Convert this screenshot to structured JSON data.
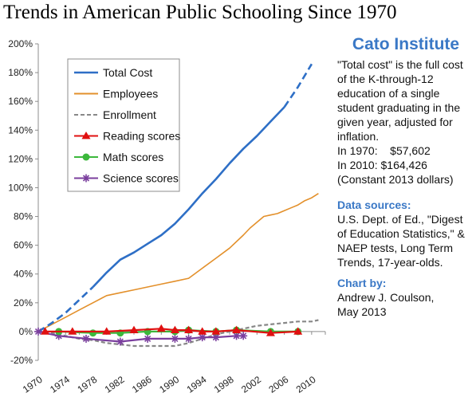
{
  "title": "Trends in American Public Schooling Since 1970",
  "sidebar": {
    "org": "Cato Institute",
    "description": "\"Total cost\" is the full cost of the K-through-12 education of a single student graduating in the given year, adjusted for inflation.",
    "cost1970_label": "In 1970:",
    "cost1970_value": "$57,602",
    "cost2010_label": "In 2010:",
    "cost2010_value": "$164,426",
    "dollars_note": "(Constant 2013 dollars)",
    "sources_header": "Data sources:",
    "sources_text": "U.S. Dept. of Ed., \"Digest of Education Statistics,\" & NAEP tests, Long Term Trends, 17-year-olds.",
    "chartby_header": "Chart by:",
    "chartby_name": "Andrew J. Coulson,",
    "chartby_date": "May 2013"
  },
  "chart_data": {
    "type": "line",
    "ylim": [
      -20,
      200
    ],
    "xlim": [
      1970,
      2012
    ],
    "y_ticks": [
      "-20%",
      "0%",
      "20%",
      "40%",
      "60%",
      "80%",
      "100%",
      "120%",
      "140%",
      "160%",
      "180%",
      "200%"
    ],
    "y_tick_values": [
      -20,
      0,
      20,
      40,
      60,
      80,
      100,
      120,
      140,
      160,
      180,
      200
    ],
    "x_ticks": [
      "1970",
      "1974",
      "1978",
      "1982",
      "1986",
      "1990",
      "1994",
      "1998",
      "2002",
      "2006",
      "2010"
    ],
    "x_tick_values": [
      1970,
      1974,
      1978,
      1982,
      1986,
      1990,
      1994,
      1998,
      2002,
      2006,
      2010
    ],
    "grid": false,
    "legend": "top-left",
    "colors": {
      "total_cost": "#2e6fc6",
      "employees": "#e3902b",
      "enrollment": "#888888",
      "reading": "#e01010",
      "math": "#3cb83c",
      "science": "#7b3f9e"
    },
    "series": [
      {
        "name": "Total Cost",
        "key": "total_cost",
        "style": "solid",
        "points": [
          [
            1970,
            0
          ],
          [
            1972,
            6
          ],
          [
            1974,
            13
          ],
          [
            1976,
            22
          ],
          [
            1978,
            31
          ],
          [
            1980,
            41
          ],
          [
            1982,
            50
          ],
          [
            1984,
            55
          ],
          [
            1986,
            61
          ],
          [
            1988,
            67
          ],
          [
            1990,
            75
          ],
          [
            1992,
            85
          ],
          [
            1994,
            96
          ],
          [
            1996,
            106
          ],
          [
            1998,
            117
          ],
          [
            2000,
            127
          ],
          [
            2002,
            136
          ],
          [
            2004,
            146
          ],
          [
            2006,
            156
          ],
          [
            2008,
            170
          ],
          [
            2010,
            186
          ]
        ],
        "dashed_ranges": [
          [
            1970,
            1978
          ],
          [
            2006,
            2010
          ]
        ]
      },
      {
        "name": "Employees",
        "key": "employees",
        "style": "solid",
        "points": [
          [
            1970,
            0
          ],
          [
            1972,
            5
          ],
          [
            1974,
            10
          ],
          [
            1976,
            15
          ],
          [
            1978,
            20
          ],
          [
            1980,
            25
          ],
          [
            1982,
            27
          ],
          [
            1984,
            29
          ],
          [
            1986,
            31
          ],
          [
            1988,
            33
          ],
          [
            1990,
            35
          ],
          [
            1992,
            37
          ],
          [
            1994,
            44
          ],
          [
            1996,
            51
          ],
          [
            1998,
            58
          ],
          [
            2000,
            67
          ],
          [
            2001,
            72
          ],
          [
            2002,
            76
          ],
          [
            2003,
            80
          ],
          [
            2004,
            81
          ],
          [
            2005,
            82
          ],
          [
            2006,
            84
          ],
          [
            2007,
            86
          ],
          [
            2008,
            88
          ],
          [
            2009,
            91
          ],
          [
            2010,
            93
          ],
          [
            2011,
            96
          ]
        ]
      },
      {
        "name": "Enrollment",
        "key": "enrollment",
        "style": "dashed",
        "points": [
          [
            1970,
            0
          ],
          [
            1972,
            -1
          ],
          [
            1974,
            -3
          ],
          [
            1976,
            -5
          ],
          [
            1978,
            -6
          ],
          [
            1980,
            -8
          ],
          [
            1982,
            -9
          ],
          [
            1984,
            -10
          ],
          [
            1986,
            -10
          ],
          [
            1988,
            -10
          ],
          [
            1990,
            -10
          ],
          [
            1992,
            -8
          ],
          [
            1994,
            -5
          ],
          [
            1996,
            -2
          ],
          [
            1998,
            0
          ],
          [
            2000,
            2
          ],
          [
            2002,
            4
          ],
          [
            2004,
            5
          ],
          [
            2006,
            6
          ],
          [
            2008,
            7
          ],
          [
            2010,
            7
          ],
          [
            2011,
            8
          ]
        ]
      },
      {
        "name": "Reading scores",
        "key": "reading",
        "style": "solid",
        "marker": "triangle",
        "points": [
          [
            1971,
            0
          ],
          [
            1975,
            0
          ],
          [
            1980,
            0
          ],
          [
            1984,
            1
          ],
          [
            1988,
            2
          ],
          [
            1990,
            1
          ],
          [
            1992,
            1
          ],
          [
            1994,
            0
          ],
          [
            1996,
            0
          ],
          [
            1999,
            1
          ],
          [
            2004,
            -1
          ],
          [
            2008,
            0
          ]
        ]
      },
      {
        "name": "Math scores",
        "key": "math",
        "style": "solid",
        "marker": "circle",
        "points": [
          [
            1973,
            0
          ],
          [
            1978,
            -1
          ],
          [
            1982,
            -1
          ],
          [
            1986,
            0
          ],
          [
            1990,
            0
          ],
          [
            1992,
            1
          ],
          [
            1996,
            0
          ],
          [
            1999,
            1
          ],
          [
            2004,
            0
          ],
          [
            2008,
            0
          ]
        ]
      },
      {
        "name": "Science scores",
        "key": "science",
        "style": "solid",
        "marker": "star",
        "points": [
          [
            1970,
            0
          ],
          [
            1973,
            -3
          ],
          [
            1977,
            -5
          ],
          [
            1982,
            -7
          ],
          [
            1986,
            -5
          ],
          [
            1990,
            -5
          ],
          [
            1992,
            -5
          ],
          [
            1994,
            -4
          ],
          [
            1996,
            -4
          ],
          [
            1999,
            -3
          ],
          [
            2000,
            -3
          ]
        ]
      }
    ]
  }
}
